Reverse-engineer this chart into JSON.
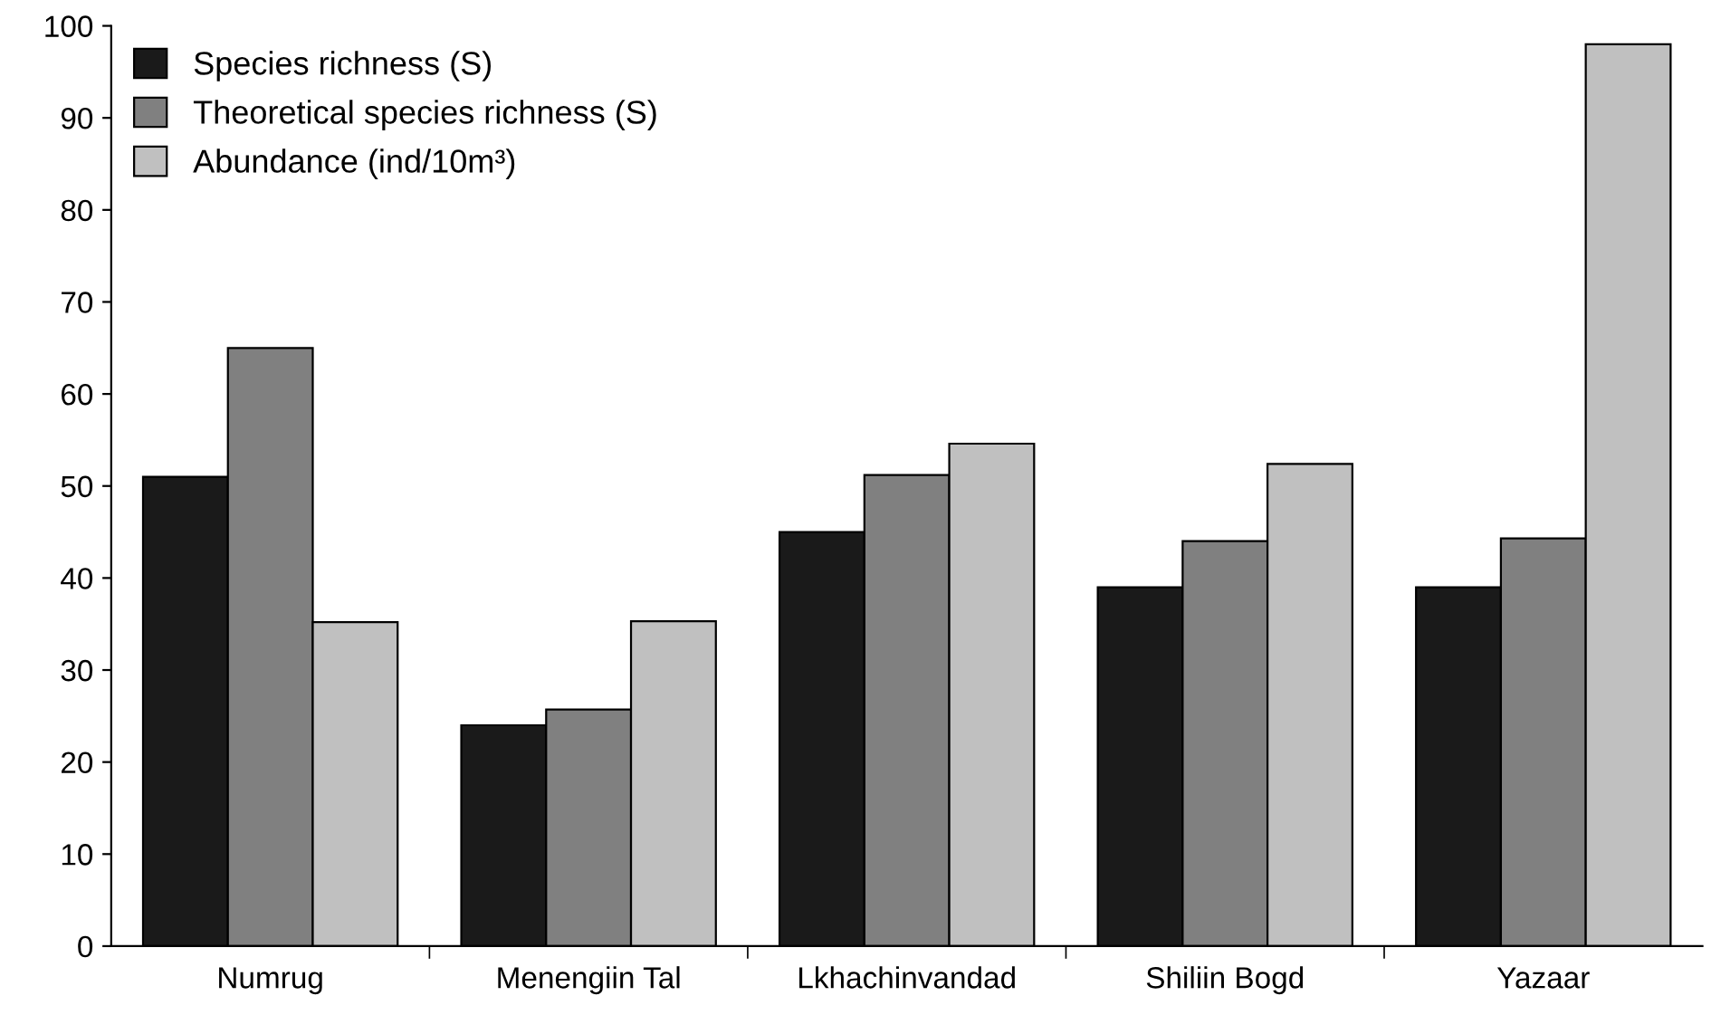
{
  "chart_data": {
    "type": "bar",
    "categories": [
      "Numrug",
      "Menengiin Tal",
      "Lkhachinvandad",
      "Shiliin Bogd",
      "Yazaar"
    ],
    "series": [
      {
        "name": "Species richness (S)",
        "color": "#1a1a1a",
        "values": [
          51,
          24,
          45,
          39,
          39
        ]
      },
      {
        "name": "Theoretical species richness (S)",
        "color": "#808080",
        "values": [
          65,
          25.7,
          51.2,
          44,
          44.3
        ]
      },
      {
        "name": "Abundance (ind/10m³)",
        "color": "#c0c0c0",
        "values": [
          35.2,
          35.3,
          54.6,
          52.4,
          98
        ]
      }
    ],
    "ylim": [
      0,
      100
    ],
    "yticks": [
      0,
      10,
      20,
      30,
      40,
      50,
      60,
      70,
      80,
      90,
      100
    ],
    "grid": false,
    "legend": "top left"
  }
}
